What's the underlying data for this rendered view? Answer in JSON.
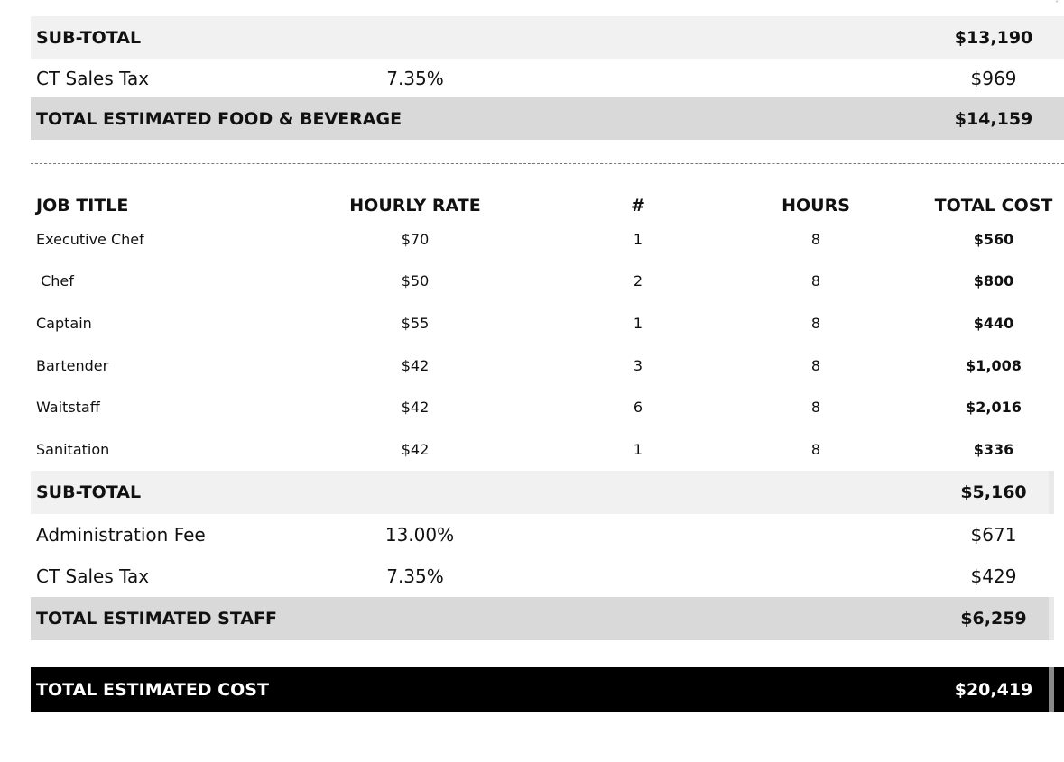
{
  "fnb_section": {
    "subtotal": {
      "label": "SUB-TOTAL",
      "amount": "$13,190"
    },
    "sales_tax": {
      "label": "CT Sales Tax",
      "rate": "7.35%",
      "amount": "$969"
    },
    "total": {
      "label": "TOTAL ESTIMATED FOOD & BEVERAGE",
      "amount": "$14,159"
    }
  },
  "staff_table": {
    "headers": {
      "job_title": "JOB TITLE",
      "hourly_rate": "HOURLY RATE",
      "count": "#",
      "hours": "HOURS",
      "total_cost": "TOTAL COST"
    },
    "rows": [
      {
        "job": "Executive Chef",
        "rate": "$70",
        "count": "1",
        "hours": "8",
        "total": "$560"
      },
      {
        "job": " Chef",
        "rate": "$50",
        "count": "2",
        "hours": "8",
        "total": "$800"
      },
      {
        "job": "Captain",
        "rate": "$55",
        "count": "1",
        "hours": "8",
        "total": "$440"
      },
      {
        "job": "Bartender",
        "rate": "$42",
        "count": "3",
        "hours": "8",
        "total": "$1,008"
      },
      {
        "job": "Waitstaff",
        "rate": "$42",
        "count": "6",
        "hours": "8",
        "total": "$2,016"
      },
      {
        "job": "Sanitation",
        "rate": "$42",
        "count": "1",
        "hours": "8",
        "total": "$336"
      }
    ]
  },
  "staff_section": {
    "subtotal": {
      "label": "SUB-TOTAL",
      "amount": "$5,160"
    },
    "admin_fee": {
      "label": "Administration Fee",
      "rate": "13.00%",
      "amount": "$671"
    },
    "sales_tax": {
      "label": "CT Sales Tax",
      "rate": "7.35%",
      "amount": "$429"
    },
    "total": {
      "label": "TOTAL ESTIMATED STAFF",
      "amount": "$6,259"
    }
  },
  "grand_total": {
    "label": "TOTAL ESTIMATED COST",
    "amount": "$20,419"
  },
  "colors": {
    "band_light": "#f1f1f1",
    "band_mid": "#d9d9d9",
    "band_black": "#000000"
  }
}
